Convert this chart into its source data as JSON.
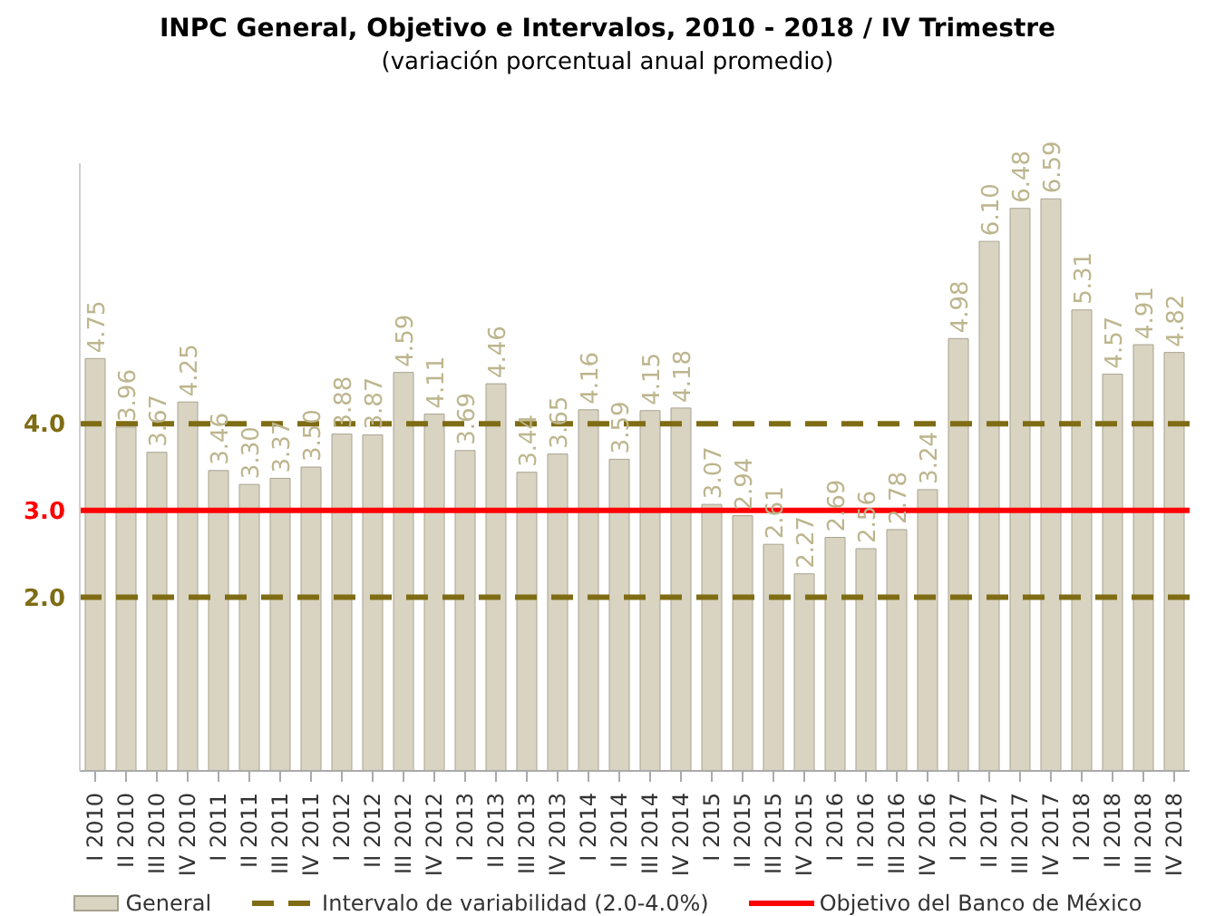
{
  "chart_data": {
    "type": "bar",
    "title": "INPC General, Objetivo e Intervalos, 2010 - 2018 / IV Trimestre",
    "subtitle": "(variación porcentual anual promedio)",
    "categories": [
      "I 2010",
      "II 2010",
      "III 2010",
      "IV 2010",
      "I 2011",
      "II 2011",
      "III 2011",
      "IV 2011",
      "I 2012",
      "II 2012",
      "III 2012",
      "IV 2012",
      "I 2013",
      "II 2013",
      "III 2013",
      "IV 2013",
      "I 2014",
      "II 2014",
      "III 2014",
      "IV 2014",
      "I 2015",
      "II 2015",
      "III 2015",
      "IV 2015",
      "I 2016",
      "II 2016",
      "III 2016",
      "IV 2016",
      "I 2017",
      "II 2017",
      "III 2017",
      "IV 2017",
      "I 2018",
      "II 2018",
      "III 2018",
      "IV 2018"
    ],
    "series": [
      {
        "name": "General",
        "color": "#d9d4c1",
        "values": [
          4.75,
          3.96,
          3.67,
          4.25,
          3.46,
          3.3,
          3.37,
          3.5,
          3.88,
          3.87,
          4.59,
          4.11,
          3.69,
          4.46,
          3.44,
          3.65,
          4.16,
          3.59,
          4.15,
          4.18,
          3.07,
          2.94,
          2.61,
          2.27,
          2.69,
          2.56,
          2.78,
          3.24,
          4.98,
          6.1,
          6.48,
          6.59,
          5.31,
          4.57,
          4.91,
          4.82
        ],
        "value_labels": [
          "4.75",
          "3.96",
          "3.67",
          "4.25",
          "3.46",
          "3.30",
          "3.37",
          "3.50",
          "3.88",
          "3.87",
          "4.59",
          "4.11",
          "3.69",
          "4.46",
          "3.44",
          "3.65",
          "4.16",
          "3.59",
          "4.15",
          "4.18",
          "3.07",
          "2.94",
          "2.61",
          "2.27",
          "2.69",
          "2.56",
          "2.78",
          "3.24",
          "4.98",
          "6.10",
          "6.48",
          "6.59",
          "5.31",
          "4.57",
          "4.91",
          "4.82"
        ]
      }
    ],
    "ylim": [
      0,
      7
    ],
    "yticks": [
      {
        "value": 2,
        "label": "2.0"
      },
      {
        "value": 3,
        "label": "3.0"
      },
      {
        "value": 4,
        "label": "4.0"
      }
    ],
    "ref_lines": [
      {
        "axis": "y",
        "value": 4,
        "label": "Intervalo de variabilidad (2.0-4.0%)",
        "color": "#7f6c14",
        "line_style": "dashed"
      },
      {
        "axis": "y",
        "value": 2,
        "label": null,
        "color": "#7f6c14",
        "line_style": "dashed"
      },
      {
        "axis": "y",
        "value": 3,
        "label": "Objetivo del Banco de México",
        "color": "#ff0000",
        "line_style": "solid"
      }
    ],
    "legend": "bottom"
  }
}
